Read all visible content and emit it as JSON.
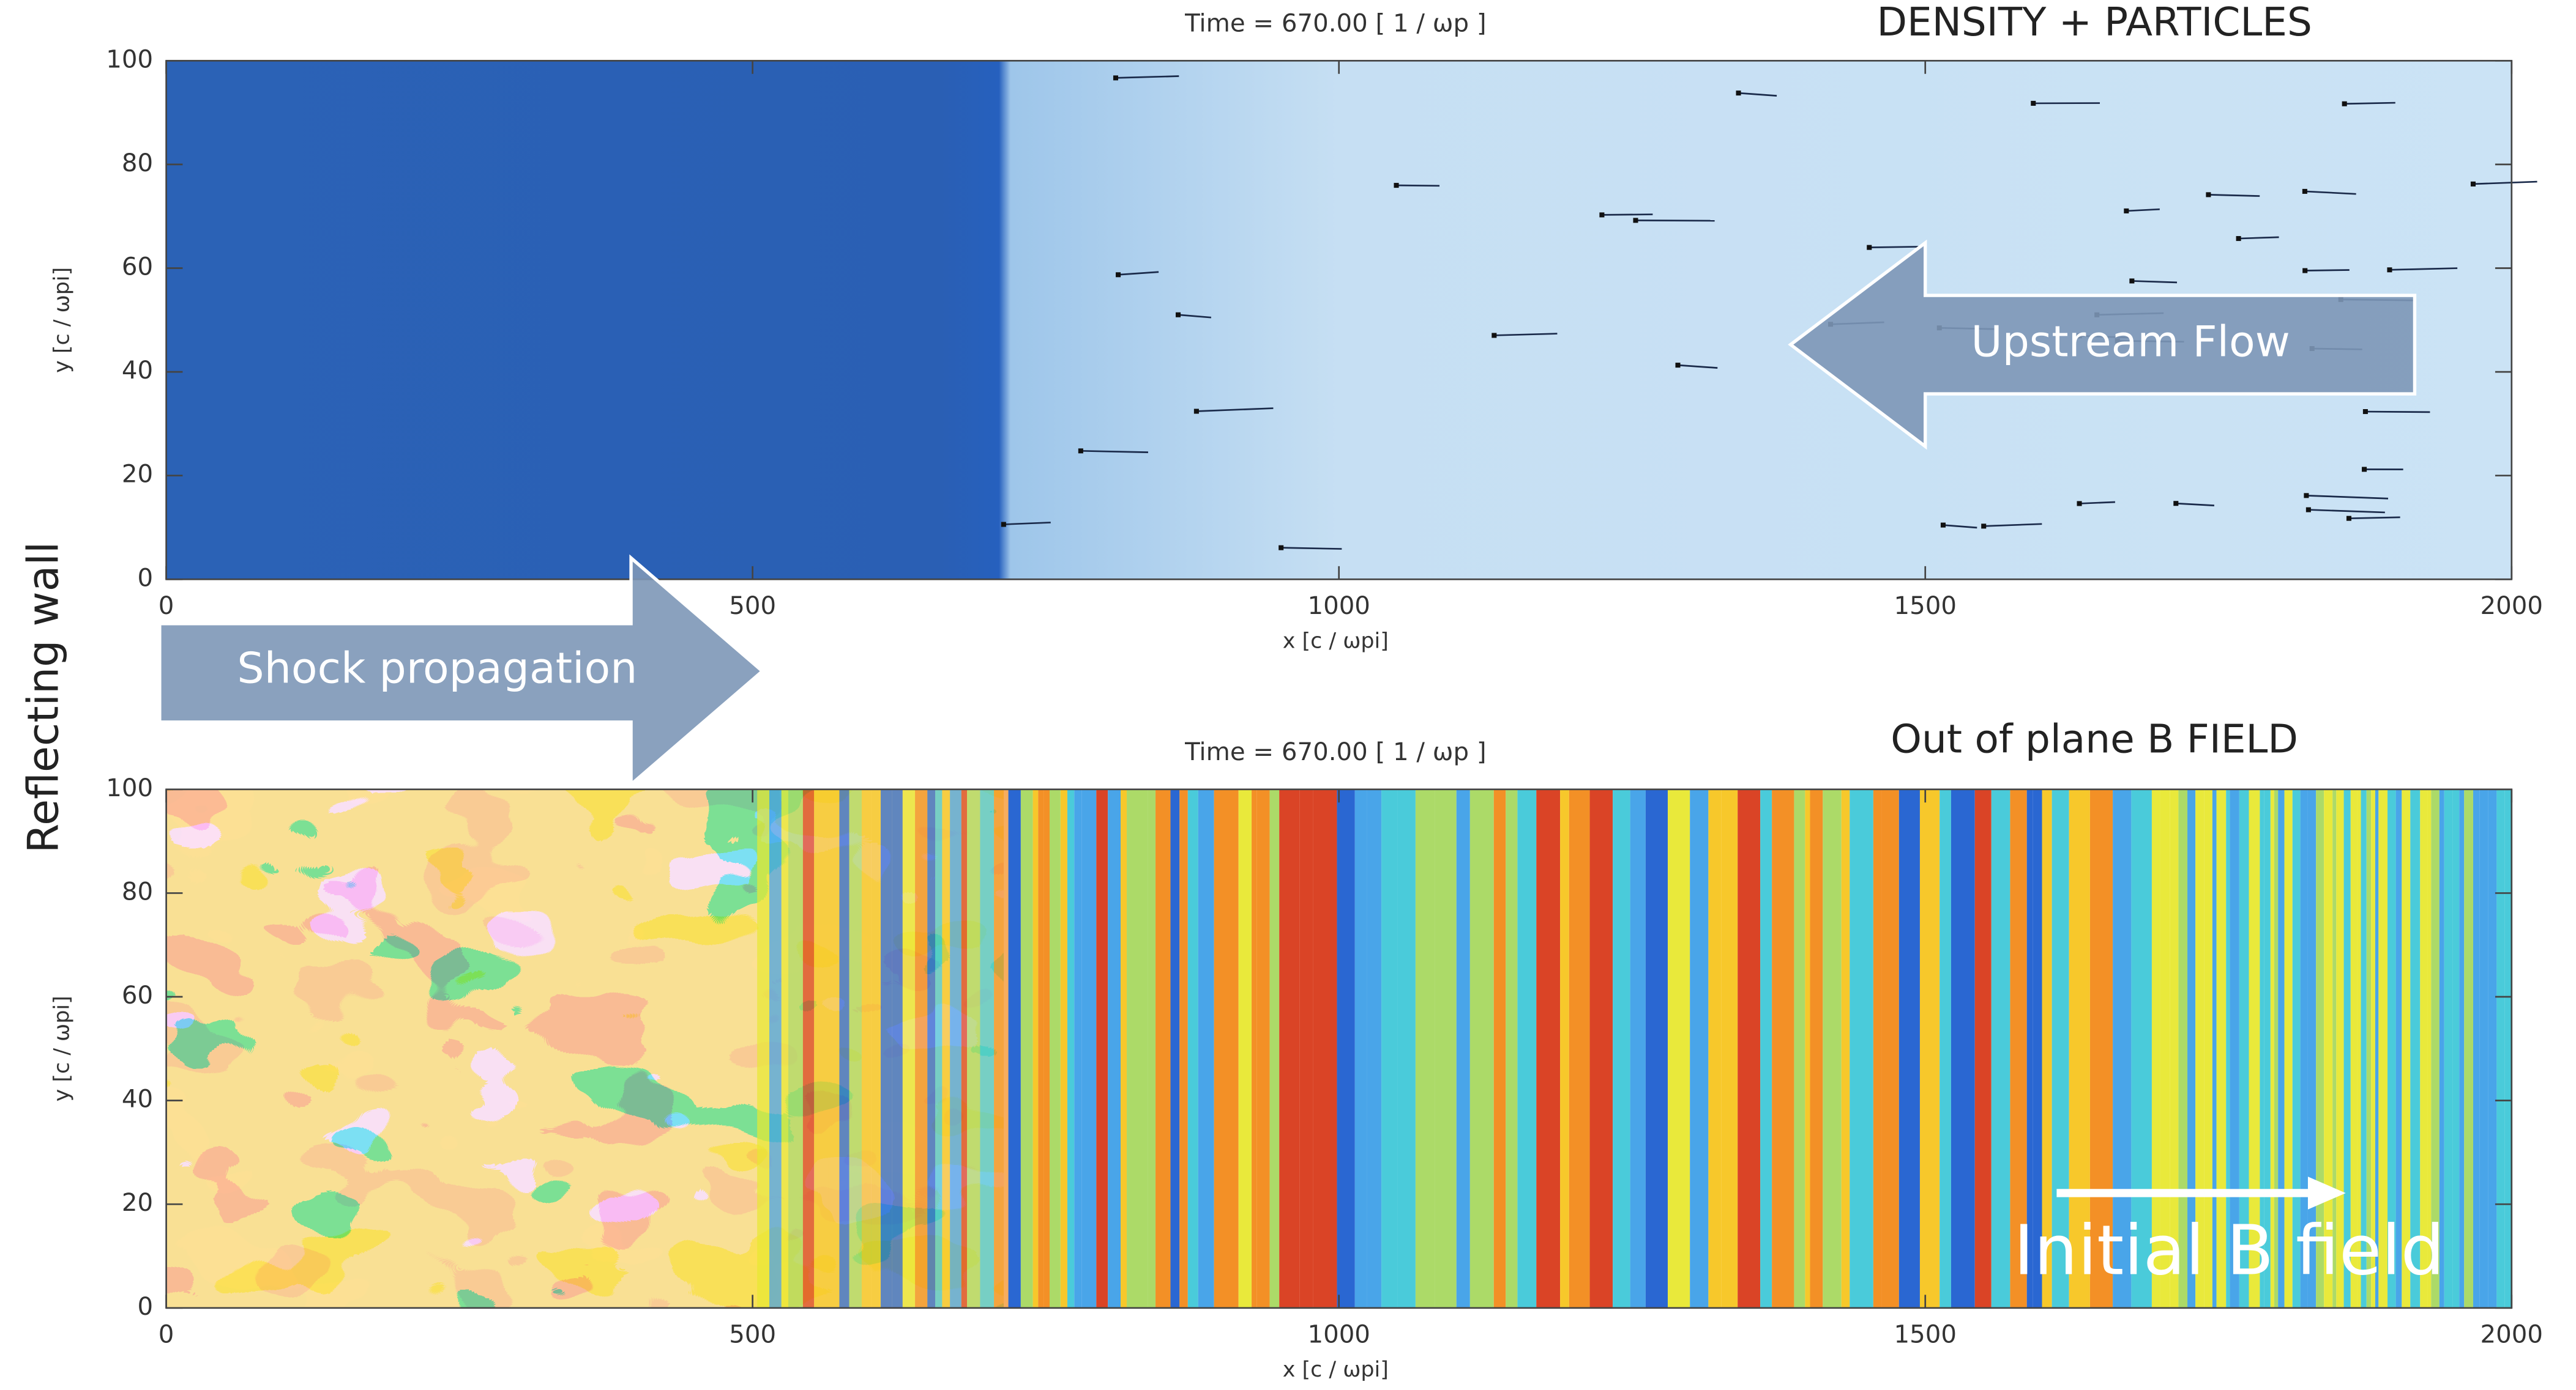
{
  "chart_data": [
    {
      "type": "heatmap",
      "title": "Time =  670.00 [ 1 / ωp ]",
      "label": "DENSITY + PARTICLES",
      "xlabel": "x [c / ωpi]",
      "ylabel": "y [c / ωpi]",
      "xlim": [
        0,
        2000
      ],
      "ylim": [
        0,
        100
      ],
      "xticks": [
        0,
        500,
        1000,
        1500,
        2000
      ],
      "yticks": [
        0,
        20,
        40,
        60,
        80,
        100
      ],
      "annotation": "Upstream Flow"
    },
    {
      "type": "heatmap",
      "title": "Time =  670.00 [ 1 / ωp ]",
      "label": "Out of plane B FIELD",
      "xlabel": "x [c / ωpi]",
      "ylabel": "y [c / ωpi]",
      "xlim": [
        0,
        2000
      ],
      "ylim": [
        0,
        100
      ],
      "xticks": [
        0,
        500,
        1000,
        1500,
        2000
      ],
      "yticks": [
        0,
        20,
        40,
        60,
        80,
        100
      ],
      "annotation": "Initial B field"
    }
  ],
  "annotations": {
    "shock": "Shock propagation",
    "wall": "Reflecting wall"
  }
}
